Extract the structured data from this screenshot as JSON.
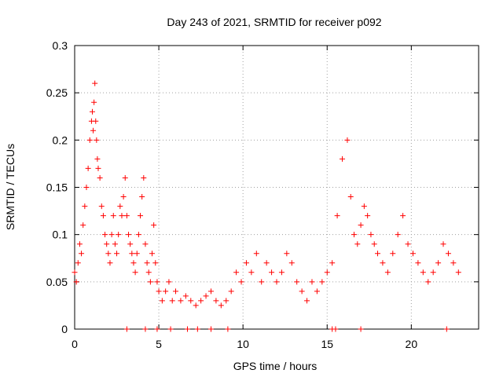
{
  "chart_data": {
    "type": "scatter",
    "title": "Day 243 of 2021, SRMTID for receiver p092",
    "xlabel": "GPS time / hours",
    "ylabel": "SRMTID / TECUs",
    "xlim": [
      0,
      24
    ],
    "ylim": [
      0,
      0.3
    ],
    "xticks": [
      0,
      5,
      10,
      15,
      20
    ],
    "yticks": [
      0,
      0.05,
      0.1,
      0.15,
      0.2,
      0.25,
      0.3
    ],
    "ytick_labels": [
      "0",
      "0.05",
      "0.1",
      "0.15",
      "0.2",
      "0.25",
      "0.3"
    ],
    "grid": true,
    "marker": "+",
    "color": "#ff0000",
    "series": [
      {
        "name": "SRMTID",
        "x": [
          0.0,
          0.1,
          0.2,
          0.3,
          0.4,
          0.5,
          0.6,
          0.7,
          0.8,
          0.9,
          1.0,
          1.05,
          1.1,
          1.15,
          1.2,
          1.25,
          1.3,
          1.35,
          1.4,
          1.5,
          1.6,
          1.7,
          1.8,
          1.9,
          2.0,
          2.1,
          2.2,
          2.3,
          2.4,
          2.5,
          2.6,
          2.7,
          2.8,
          2.9,
          3.0,
          3.1,
          3.2,
          3.3,
          3.4,
          3.5,
          3.6,
          3.7,
          3.8,
          3.9,
          4.0,
          4.1,
          4.2,
          4.3,
          4.4,
          4.5,
          4.6,
          4.7,
          4.8,
          4.9,
          5.0,
          5.2,
          5.4,
          5.6,
          5.8,
          6.0,
          6.3,
          6.6,
          6.9,
          7.2,
          7.5,
          7.8,
          8.1,
          8.4,
          8.7,
          9.0,
          9.3,
          9.6,
          9.9,
          10.2,
          10.5,
          10.8,
          11.1,
          11.4,
          11.7,
          12.0,
          12.3,
          12.6,
          12.9,
          13.2,
          13.5,
          13.8,
          14.1,
          14.4,
          14.7,
          15.0,
          15.3,
          15.6,
          15.9,
          16.2,
          16.4,
          16.6,
          16.8,
          17.0,
          17.2,
          17.4,
          17.6,
          17.8,
          18.0,
          18.3,
          18.6,
          18.9,
          19.2,
          19.5,
          19.8,
          20.1,
          20.4,
          20.7,
          21.0,
          21.3,
          21.6,
          21.9,
          22.2,
          22.5,
          22.8,
          3.1,
          4.2,
          4.9,
          5.7,
          6.7,
          7.3,
          8.1,
          9.1,
          15.3,
          15.5,
          17.0,
          22.1
        ],
        "y": [
          0.06,
          0.05,
          0.07,
          0.09,
          0.08,
          0.11,
          0.13,
          0.15,
          0.17,
          0.2,
          0.22,
          0.23,
          0.21,
          0.24,
          0.26,
          0.22,
          0.2,
          0.18,
          0.17,
          0.16,
          0.13,
          0.12,
          0.1,
          0.09,
          0.08,
          0.07,
          0.1,
          0.12,
          0.09,
          0.08,
          0.1,
          0.13,
          0.12,
          0.14,
          0.16,
          0.12,
          0.1,
          0.09,
          0.08,
          0.07,
          0.06,
          0.08,
          0.1,
          0.12,
          0.14,
          0.16,
          0.09,
          0.07,
          0.06,
          0.05,
          0.08,
          0.11,
          0.07,
          0.05,
          0.04,
          0.03,
          0.04,
          0.05,
          0.03,
          0.04,
          0.03,
          0.035,
          0.03,
          0.025,
          0.03,
          0.035,
          0.04,
          0.03,
          0.025,
          0.03,
          0.04,
          0.06,
          0.05,
          0.07,
          0.06,
          0.08,
          0.05,
          0.07,
          0.06,
          0.05,
          0.06,
          0.08,
          0.07,
          0.05,
          0.04,
          0.03,
          0.05,
          0.04,
          0.05,
          0.06,
          0.07,
          0.12,
          0.18,
          0.2,
          0.14,
          0.1,
          0.09,
          0.11,
          0.13,
          0.12,
          0.1,
          0.09,
          0.08,
          0.07,
          0.06,
          0.08,
          0.1,
          0.12,
          0.09,
          0.08,
          0.07,
          0.06,
          0.05,
          0.06,
          0.07,
          0.09,
          0.08,
          0.07,
          0.06,
          0,
          0,
          0,
          0,
          0,
          0,
          0,
          0,
          0,
          0,
          0,
          0
        ]
      }
    ]
  }
}
